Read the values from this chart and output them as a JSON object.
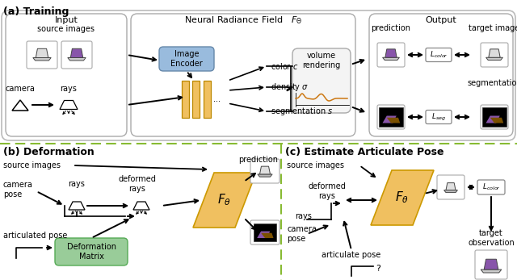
{
  "bg": "#ffffff",
  "wave_color": "#cc7711",
  "mlp_color": "#f0c060",
  "encoder_color": "#99bbdd",
  "ftheta_color": "#f0c060",
  "defmat_color": "#99cc99",
  "dashed_color": "#88bb33",
  "purple": "#8855aa",
  "brown": "#7a5000",
  "seg_bg": "#111111",
  "section_a": "(a) Training",
  "section_b": "(b) Deformation",
  "section_c": "(c) Estimate Articulate Pose",
  "input_lbl": "Input",
  "nerf_lbl": "Neural Radiance Field   $F_\\Theta$",
  "output_lbl": "Output",
  "src_img_lbl": "source images",
  "camera_lbl": "camera",
  "rays_lbl": "rays",
  "encoder_lbl": "Image\nEncoder",
  "color_lbl": "color $c$",
  "density_lbl": "density $\\sigma$",
  "seg_lbl": "segmentation $s$",
  "vol_render_lbl": "volume\nrendering",
  "pred_lbl": "prediction",
  "tgt_img_lbl": "target image",
  "seg_out_lbl": "segmentation",
  "lcolor_lbl": "$L_{color}$",
  "lseg_lbl": "$L_{seg}$",
  "src_img_b_lbl": "source images",
  "cam_pose_b_lbl": "camera\npose",
  "art_pose_b_lbl": "articulated pose",
  "deformed_rays_lbl": "deformed\nrays",
  "defmat_lbl": "Deformation\nMatrix",
  "pred_b_lbl": "prediction",
  "src_img_c_lbl": "source images",
  "def_rays_c_lbl": "deformed\nrays",
  "rays_c_lbl": "rays",
  "cam_pose_c_lbl": "camera\npose",
  "art_pose_c_lbl": "articulate pose",
  "lcolor_c_lbl": "$L_{color}$",
  "tgt_obs_lbl": "target\nobservation"
}
